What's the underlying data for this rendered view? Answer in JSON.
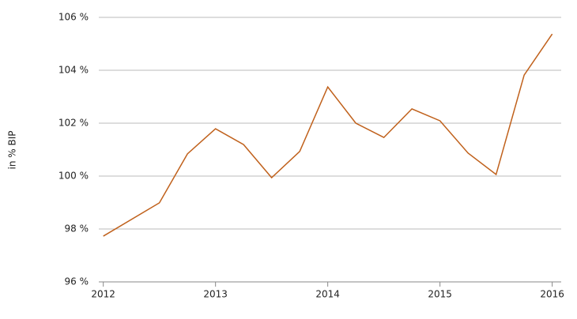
{
  "chart_data": {
    "type": "line",
    "y_label": "in % BIP",
    "x": [
      2012,
      2012.5,
      2012.75,
      2013,
      2013.25,
      2013.5,
      2013.75,
      2014,
      2014.25,
      2014.5,
      2014.75,
      2015,
      2015.25,
      2015.5,
      2015.75,
      2016
    ],
    "series": [
      {
        "color": "#c0611c",
        "values": [
          97.73,
          98.99,
          100.84,
          101.79,
          101.19,
          99.94,
          100.93,
          103.37,
          102.0,
          101.46,
          102.54,
          102.09,
          100.87,
          100.06,
          103.82,
          105.37
        ]
      }
    ],
    "xlim": [
      2011.96,
      2016.08
    ],
    "xticks": [
      2012,
      2013,
      2014,
      2015,
      2016
    ],
    "ylim": [
      96,
      106
    ],
    "yticks": [
      {
        "value": 96,
        "label": "96 %"
      },
      {
        "value": 98,
        "label": "98 %"
      },
      {
        "value": 100,
        "label": "100 %"
      },
      {
        "value": 102,
        "label": "102 %"
      },
      {
        "value": 104,
        "label": "104 %"
      },
      {
        "value": 106,
        "label": "106 %"
      }
    ],
    "grid": true
  }
}
